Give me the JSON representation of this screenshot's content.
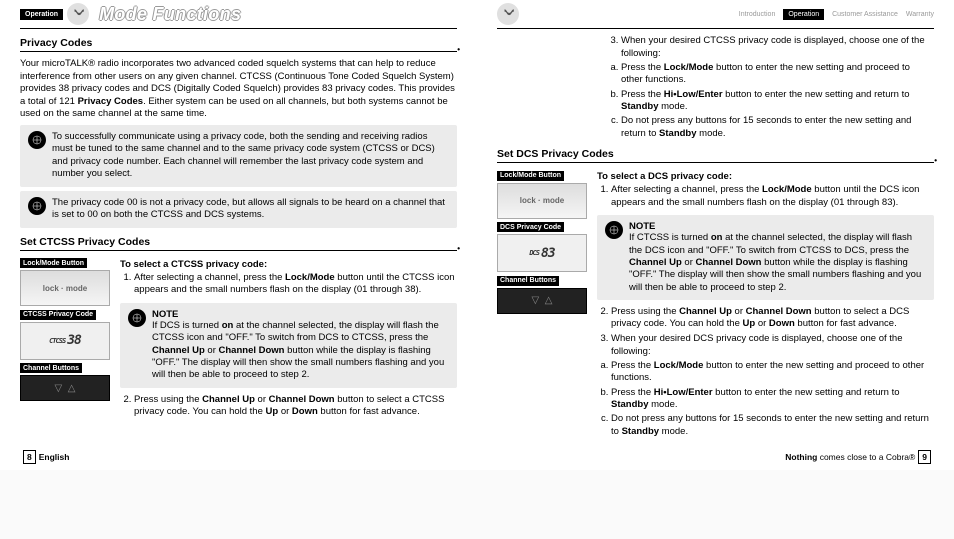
{
  "header": {
    "section": "Operation",
    "title": "Mode Functions",
    "tabs": [
      "Introduction",
      "Operation",
      "Customer Assistance",
      "Warranty"
    ]
  },
  "left": {
    "h1": "Privacy Codes",
    "p1": "Your microTALK® radio incorporates two advanced coded squelch systems that can help to reduce interference from other users on any given channel. CTCSS (Continuous Tone Coded Squelch System) provides 38 privacy codes and DCS (Digitally Coded Squelch) provides 83 privacy codes. This provides a total of 121 ",
    "p1b": "Privacy Codes",
    "p1c": ". Either system can be used on all channels, but both systems cannot be used on the same channel at the same time.",
    "n1": "To successfully communicate using a privacy code, both the sending and receiving radios must be tuned to the same channel and to the same privacy code system (CTCSS or DCS) and privacy code number. Each channel will remember the last privacy code system and number you select.",
    "n2": "The privacy code 00 is not a privacy code, but allows all signals to be heard on a channel that is set to 00 on both the CTCSS and DCS systems.",
    "h2": "Set CTCSS Privacy Codes",
    "labels": {
      "a": "Lock/Mode Button",
      "b": "CTCSS Privacy Code",
      "c": "Channel Buttons"
    },
    "lcd1": "38",
    "sub": "To select a CTCSS privacy code:",
    "s1a": "After selecting a channel, press the ",
    "s1b": "Lock/Mode",
    "s1c": " button until the CTCSS icon appears and the small numbers flash on the display (01 through 38).",
    "note_t": "NOTE",
    "note": "If DCS is turned <b>on</b> at the channel selected, the display will flash the CTCSS icon and \"OFF.\" To switch from DCS to CTCSS, press the <b>Channel Up</b> or <b>Channel Down</b> button while the display is flashing \"OFF.\" The display will then show the small numbers flashing and you will then be able to proceed to step 2.",
    "s2": "Press using the <b>Channel Up</b> or <b>Channel Down</b> button to select a CTCSS privacy code. You can hold the <b>Up</b> or <b>Down</b> button for fast advance."
  },
  "right": {
    "s3": "When your desired CTCSS privacy code is displayed, choose one of the following:",
    "s3a": "Press the <b>Lock/Mode</b> button to enter the new setting and proceed to other functions.",
    "s3b": "Press the <b>Hi•Low/Enter</b> button to enter the new setting and return to <b>Standby</b> mode.",
    "s3c": "Do not press any buttons for 15 seconds to enter the new setting and return to <b>Standby</b> mode.",
    "h2": "Set DCS Privacy Codes",
    "labels": {
      "a": "Lock/Mode Button",
      "b": "DCS Privacy Code",
      "c": "Channel Buttons"
    },
    "lcd2": "83",
    "sub": "To select a DCS privacy code:",
    "d1a": "After selecting a channel, press the ",
    "d1b": "Lock/Mode",
    "d1c": " button until the DCS icon appears and the small numbers flash on the display (01 through 83).",
    "note_t": "NOTE",
    "note": "If CTCSS is turned <b>on</b> at the channel selected, the display will flash the DCS icon and \"OFF.\" To switch from CTCSS to DCS, press the <b>Channel Up</b> or <b>Channel Down</b> button while the display is flashing \"OFF.\" The display will then show the small numbers flashing and you will then be able to proceed to step 2.",
    "d2": "Press using the <b>Channel Up</b> or <b>Channel Down</b> button to select a DCS privacy code. You can hold the <b>Up</b> or <b>Down</b> button for fast advance.",
    "d3": "When your desired DCS privacy code is displayed, choose one of the following:",
    "d3a": "Press the <b>Lock/Mode</b> button to enter the new setting and proceed to other functions.",
    "d3b": "Press the <b>Hi•Low/Enter</b> button to enter the new setting and return to <b>Standby</b> mode.",
    "d3c": "Do not press any buttons for 15 seconds to enter the new setting and return to <b>Standby</b> mode."
  },
  "footer": {
    "left_pg": "8",
    "left_lang": "English",
    "right_tag": "<b>Nothing</b> comes close to a Cobra®",
    "right_pg": "9"
  }
}
